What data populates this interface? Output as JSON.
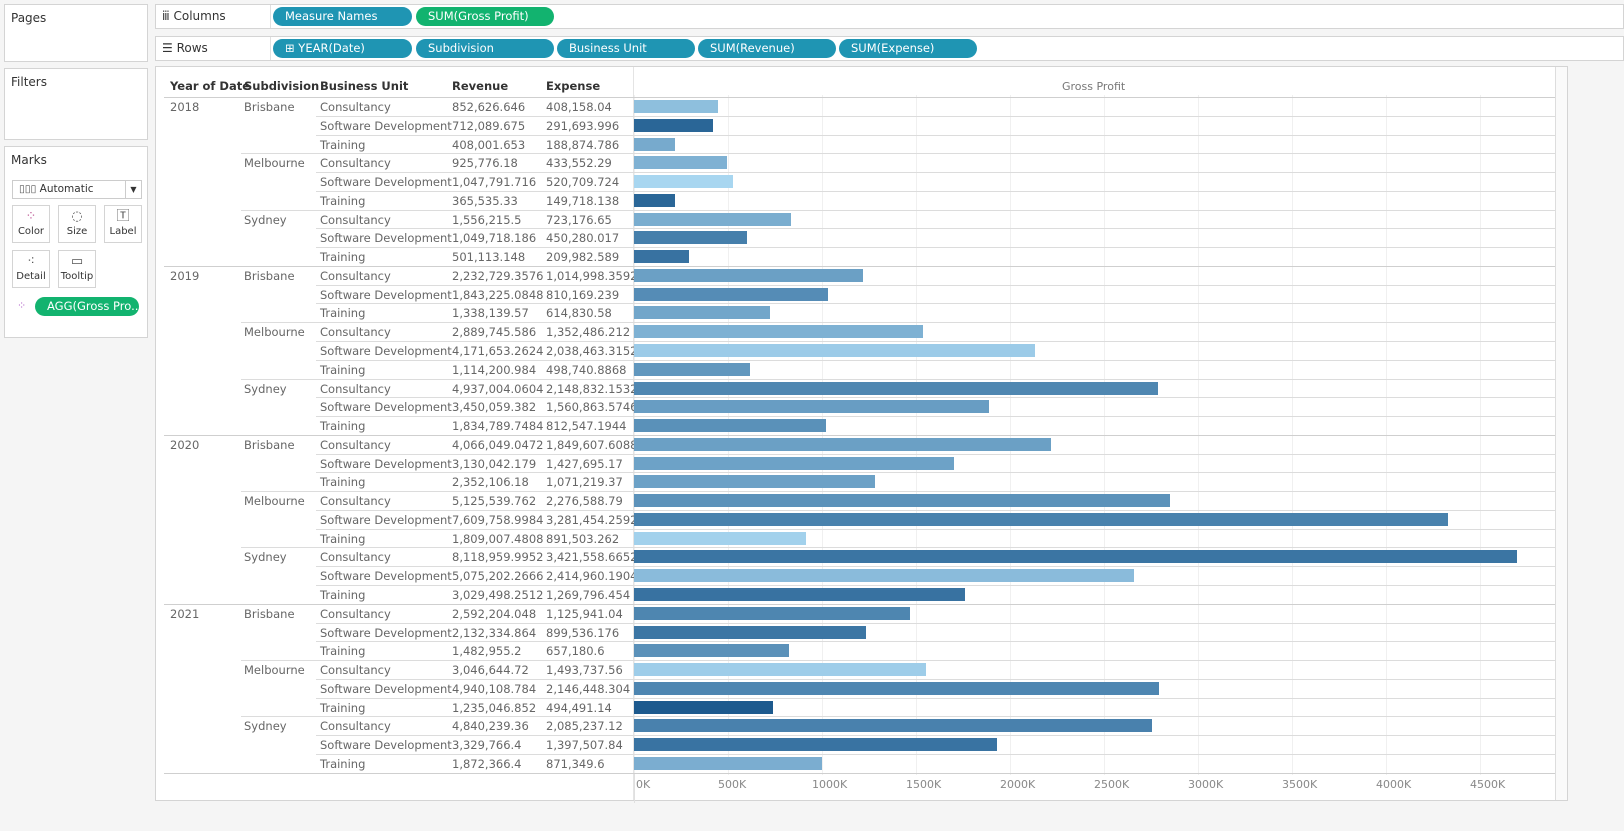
{
  "left": {
    "pages": "Pages",
    "filters": "Filters",
    "marks": "Marks",
    "mark_type": "Automatic",
    "mark_buttons": [
      {
        "label": "Color",
        "icon": "color-dots-icon"
      },
      {
        "label": "Size",
        "icon": "size-icon"
      },
      {
        "label": "Label",
        "icon": "label-icon"
      },
      {
        "label": "Detail",
        "icon": "detail-icon"
      },
      {
        "label": "Tooltip",
        "icon": "tooltip-icon"
      }
    ],
    "color_pill": "AGG(Gross Pro.."
  },
  "shelves": {
    "columns_label": "Columns",
    "columns": [
      "Measure Names",
      "SUM(Gross Profit)"
    ],
    "rows_label": "Rows",
    "rows": [
      "⊞ YEAR(Date)",
      "Subdivision",
      "Business Unit",
      "SUM(Revenue)",
      "SUM(Expense)"
    ]
  },
  "colors": {
    "pill_blue": "#1f95b3",
    "pill_green": "#12b36f",
    "bar_light": "#a8d6f0",
    "bar_dark": "#1d5a8e"
  },
  "chart_data": {
    "type": "bar",
    "headers": [
      "Year of Date",
      "Subdivision",
      "Business Unit",
      "Revenue",
      "Expense"
    ],
    "xlabel": "Gross Profit",
    "x_ticks": [
      "0K",
      "500K",
      "1000K",
      "1500K",
      "2000K",
      "2500K",
      "3000K",
      "3500K",
      "4000K",
      "4500K"
    ],
    "xlim": [
      0,
      4900000
    ],
    "grid": true,
    "color_encoding": "AGG(Gross Profit) ratio, sequential blue",
    "rows": [
      {
        "year": "2018",
        "sub": "Brisbane",
        "unit": "Consultancy",
        "revenue": "852,626.646",
        "expense": "408,158.04",
        "gross_profit": 444468.6
      },
      {
        "year": "2018",
        "sub": "Brisbane",
        "unit": "Software Development",
        "revenue": "712,089.675",
        "expense": "291,693.996",
        "gross_profit": 420395.7
      },
      {
        "year": "2018",
        "sub": "Brisbane",
        "unit": "Training",
        "revenue": "408,001.653",
        "expense": "188,874.786",
        "gross_profit": 219126.9
      },
      {
        "year": "2018",
        "sub": "Melbourne",
        "unit": "Consultancy",
        "revenue": "925,776.18",
        "expense": "433,552.29",
        "gross_profit": 492223.9
      },
      {
        "year": "2018",
        "sub": "Melbourne",
        "unit": "Software Development",
        "revenue": "1,047,791.716",
        "expense": "520,709.724",
        "gross_profit": 527082.0
      },
      {
        "year": "2018",
        "sub": "Melbourne",
        "unit": "Training",
        "revenue": "365,535.33",
        "expense": "149,718.138",
        "gross_profit": 215817.2
      },
      {
        "year": "2018",
        "sub": "Sydney",
        "unit": "Consultancy",
        "revenue": "1,556,215.5",
        "expense": "723,176.65",
        "gross_profit": 833038.9
      },
      {
        "year": "2018",
        "sub": "Sydney",
        "unit": "Software Development",
        "revenue": "1,049,718.186",
        "expense": "450,280.017",
        "gross_profit": 599438.2
      },
      {
        "year": "2018",
        "sub": "Sydney",
        "unit": "Training",
        "revenue": "501,113.148",
        "expense": "209,982.589",
        "gross_profit": 291130.6
      },
      {
        "year": "2019",
        "sub": "Brisbane",
        "unit": "Consultancy",
        "revenue": "2,232,729.3576",
        "expense": "1,014,998.3592",
        "gross_profit": 1217731.0
      },
      {
        "year": "2019",
        "sub": "Brisbane",
        "unit": "Software Development",
        "revenue": "1,843,225.0848",
        "expense": "810,169.239",
        "gross_profit": 1033055.8
      },
      {
        "year": "2019",
        "sub": "Brisbane",
        "unit": "Training",
        "revenue": "1,338,139.57",
        "expense": "614,830.58",
        "gross_profit": 723309.0
      },
      {
        "year": "2019",
        "sub": "Melbourne",
        "unit": "Consultancy",
        "revenue": "2,889,745.586",
        "expense": "1,352,486.212",
        "gross_profit": 1537259.4
      },
      {
        "year": "2019",
        "sub": "Melbourne",
        "unit": "Software Development",
        "revenue": "4,171,653.2624",
        "expense": "2,038,463.3152",
        "gross_profit": 2133189.9
      },
      {
        "year": "2019",
        "sub": "Melbourne",
        "unit": "Training",
        "revenue": "1,114,200.984",
        "expense": "498,740.8868",
        "gross_profit": 615460.1
      },
      {
        "year": "2019",
        "sub": "Sydney",
        "unit": "Consultancy",
        "revenue": "4,937,004.0604",
        "expense": "2,148,832.1532",
        "gross_profit": 2788171.9
      },
      {
        "year": "2019",
        "sub": "Sydney",
        "unit": "Software Development",
        "revenue": "3,450,059.382",
        "expense": "1,560,863.5746",
        "gross_profit": 1889195.8
      },
      {
        "year": "2019",
        "sub": "Sydney",
        "unit": "Training",
        "revenue": "1,834,789.7484",
        "expense": "812,547.1944",
        "gross_profit": 1022242.6
      },
      {
        "year": "2020",
        "sub": "Brisbane",
        "unit": "Consultancy",
        "revenue": "4,066,049.0472",
        "expense": "1,849,607.6088",
        "gross_profit": 2216441.4
      },
      {
        "year": "2020",
        "sub": "Brisbane",
        "unit": "Software Development",
        "revenue": "3,130,042.179",
        "expense": "1,427,695.17",
        "gross_profit": 1702347.0
      },
      {
        "year": "2020",
        "sub": "Brisbane",
        "unit": "Training",
        "revenue": "2,352,106.18",
        "expense": "1,071,219.37",
        "gross_profit": 1280886.8
      },
      {
        "year": "2020",
        "sub": "Melbourne",
        "unit": "Consultancy",
        "revenue": "5,125,539.762",
        "expense": "2,276,588.79",
        "gross_profit": 2848951.0
      },
      {
        "year": "2020",
        "sub": "Melbourne",
        "unit": "Software Development",
        "revenue": "7,609,758.9984",
        "expense": "3,281,454.2592",
        "gross_profit": 4328304.7
      },
      {
        "year": "2020",
        "sub": "Melbourne",
        "unit": "Training",
        "revenue": "1,809,007.4808",
        "expense": "891,503.262",
        "gross_profit": 917504.2
      },
      {
        "year": "2020",
        "sub": "Sydney",
        "unit": "Consultancy",
        "revenue": "8,118,959.9952",
        "expense": "3,421,558.6652",
        "gross_profit": 4697401.3
      },
      {
        "year": "2020",
        "sub": "Sydney",
        "unit": "Software Development",
        "revenue": "5,075,202.2666",
        "expense": "2,414,960.1904",
        "gross_profit": 2660242.1
      },
      {
        "year": "2020",
        "sub": "Sydney",
        "unit": "Training",
        "revenue": "3,029,498.2512",
        "expense": "1,269,796.454",
        "gross_profit": 1759701.8
      },
      {
        "year": "2021",
        "sub": "Brisbane",
        "unit": "Consultancy",
        "revenue": "2,592,204.048",
        "expense": "1,125,941.04",
        "gross_profit": 1466263.0
      },
      {
        "year": "2021",
        "sub": "Brisbane",
        "unit": "Software Development",
        "revenue": "2,132,334.864",
        "expense": "899,536.176",
        "gross_profit": 1232798.7
      },
      {
        "year": "2021",
        "sub": "Brisbane",
        "unit": "Training",
        "revenue": "1,482,955.2",
        "expense": "657,180.6",
        "gross_profit": 825774.6
      },
      {
        "year": "2021",
        "sub": "Melbourne",
        "unit": "Consultancy",
        "revenue": "3,046,644.72",
        "expense": "1,493,737.56",
        "gross_profit": 1552907.2
      },
      {
        "year": "2021",
        "sub": "Melbourne",
        "unit": "Software Development",
        "revenue": "4,940,108.784",
        "expense": "2,146,448.304",
        "gross_profit": 2793660.5
      },
      {
        "year": "2021",
        "sub": "Melbourne",
        "unit": "Training",
        "revenue": "1,235,046.852",
        "expense": "494,491.14",
        "gross_profit": 740555.7
      },
      {
        "year": "2021",
        "sub": "Sydney",
        "unit": "Consultancy",
        "revenue": "4,840,239.36",
        "expense": "2,085,237.12",
        "gross_profit": 2755002.2
      },
      {
        "year": "2021",
        "sub": "Sydney",
        "unit": "Software Development",
        "revenue": "3,329,766.4",
        "expense": "1,397,507.84",
        "gross_profit": 1932258.6
      },
      {
        "year": "2021",
        "sub": "Sydney",
        "unit": "Training",
        "revenue": "1,872,366.4",
        "expense": "871,349.6",
        "gross_profit": 1001016.8
      }
    ]
  }
}
